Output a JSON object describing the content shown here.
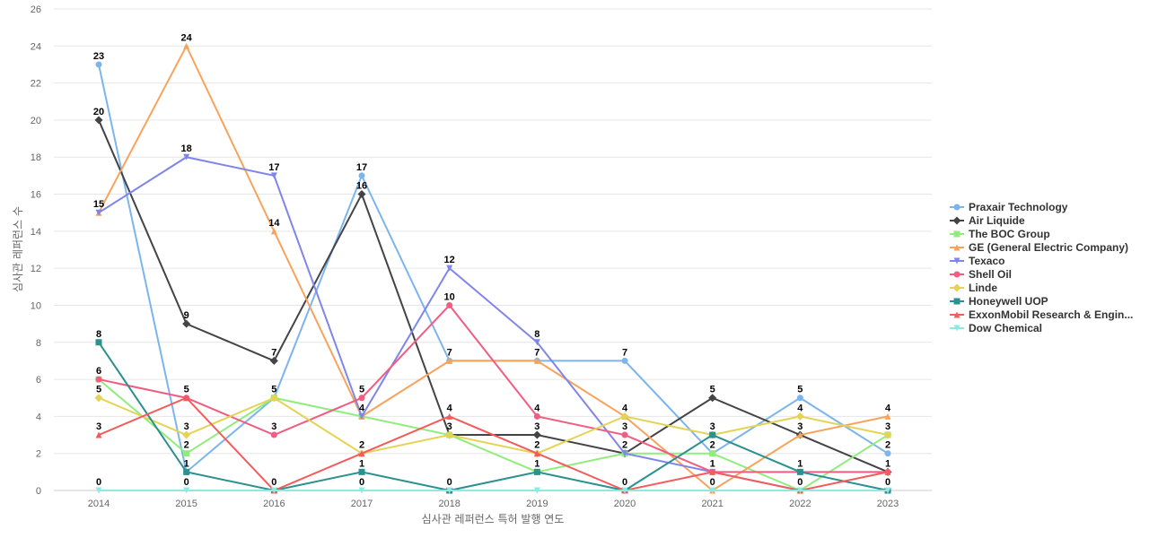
{
  "chart_data": {
    "type": "line",
    "xlabel": "심사관 레퍼런스 특허 발행 연도",
    "ylabel": "심사관 레퍼런스 수",
    "ylim": [
      0,
      26
    ],
    "y_ticks": [
      0,
      2,
      4,
      6,
      8,
      10,
      12,
      14,
      16,
      18,
      20,
      22,
      24,
      26
    ],
    "grid": true,
    "legend_position": "right",
    "categories": [
      "2014",
      "2015",
      "2016",
      "2017",
      "2018",
      "2019",
      "2020",
      "2021",
      "2022",
      "2023"
    ],
    "series": [
      {
        "name": "Praxair Technology",
        "color": "#7cb5ec",
        "marker": "circle",
        "values": [
          23,
          1,
          5,
          17,
          7,
          7,
          7,
          2,
          5,
          2
        ]
      },
      {
        "name": "Air Liquide",
        "color": "#434348",
        "marker": "diamond",
        "values": [
          20,
          9,
          7,
          16,
          3,
          3,
          2,
          5,
          3,
          1
        ]
      },
      {
        "name": "The BOC Group",
        "color": "#90ed7d",
        "marker": "square",
        "values": [
          6,
          2,
          5,
          4,
          3,
          1,
          2,
          2,
          0,
          3
        ]
      },
      {
        "name": "GE (General Electric Company)",
        "color": "#f7a35c",
        "marker": "triangle",
        "values": [
          15,
          24,
          14,
          4,
          7,
          7,
          4,
          0,
          3,
          4
        ]
      },
      {
        "name": "Texaco",
        "color": "#8085e9",
        "marker": "triangle-down",
        "values": [
          15,
          18,
          17,
          4,
          12,
          8,
          2,
          1,
          0,
          0
        ]
      },
      {
        "name": "Shell Oil",
        "color": "#f15c80",
        "marker": "circle",
        "values": [
          6,
          5,
          3,
          5,
          10,
          4,
          3,
          1,
          1,
          1
        ]
      },
      {
        "name": "Linde",
        "color": "#e4d354",
        "marker": "diamond",
        "values": [
          5,
          3,
          5,
          2,
          3,
          2,
          4,
          3,
          4,
          3
        ]
      },
      {
        "name": "Honeywell UOP",
        "color": "#2b908f",
        "marker": "square",
        "values": [
          8,
          1,
          0,
          1,
          0,
          1,
          0,
          3,
          1,
          0
        ]
      },
      {
        "name": "ExxonMobil Research & Engin...",
        "color": "#f45b5b",
        "marker": "triangle",
        "values": [
          3,
          5,
          0,
          2,
          4,
          2,
          0,
          1,
          0,
          1
        ]
      },
      {
        "name": "Dow Chemical",
        "color": "#91e8e1",
        "marker": "triangle-down",
        "values": [
          0,
          0,
          0,
          0,
          0,
          0,
          0,
          0,
          0,
          0
        ]
      }
    ],
    "data_labels": [
      {
        "c": 0,
        "v": 23
      },
      {
        "c": 0,
        "v": 20
      },
      {
        "c": 0,
        "v": 15
      },
      {
        "c": 0,
        "v": 8
      },
      {
        "c": 0,
        "v": 6
      },
      {
        "c": 0,
        "v": 5
      },
      {
        "c": 0,
        "v": 3
      },
      {
        "c": 0,
        "v": 0
      },
      {
        "c": 1,
        "v": 24
      },
      {
        "c": 1,
        "v": 18
      },
      {
        "c": 1,
        "v": 9
      },
      {
        "c": 1,
        "v": 5
      },
      {
        "c": 1,
        "v": 3
      },
      {
        "c": 1,
        "v": 2
      },
      {
        "c": 1,
        "v": 1
      },
      {
        "c": 1,
        "v": 0
      },
      {
        "c": 2,
        "v": 17
      },
      {
        "c": 2,
        "v": 14
      },
      {
        "c": 2,
        "v": 7
      },
      {
        "c": 2,
        "v": 5
      },
      {
        "c": 2,
        "v": 3
      },
      {
        "c": 2,
        "v": 0
      },
      {
        "c": 3,
        "v": 17
      },
      {
        "c": 3,
        "v": 16
      },
      {
        "c": 3,
        "v": 5
      },
      {
        "c": 3,
        "v": 4
      },
      {
        "c": 3,
        "v": 2
      },
      {
        "c": 3,
        "v": 1
      },
      {
        "c": 3,
        "v": 0
      },
      {
        "c": 4,
        "v": 12
      },
      {
        "c": 4,
        "v": 10
      },
      {
        "c": 4,
        "v": 7
      },
      {
        "c": 4,
        "v": 4
      },
      {
        "c": 4,
        "v": 3
      },
      {
        "c": 4,
        "v": 0
      },
      {
        "c": 5,
        "v": 8
      },
      {
        "c": 5,
        "v": 7
      },
      {
        "c": 5,
        "v": 4
      },
      {
        "c": 5,
        "v": 3
      },
      {
        "c": 5,
        "v": 2
      },
      {
        "c": 5,
        "v": 1
      },
      {
        "c": 6,
        "v": 7
      },
      {
        "c": 6,
        "v": 4
      },
      {
        "c": 6,
        "v": 3
      },
      {
        "c": 6,
        "v": 2
      },
      {
        "c": 6,
        "v": 0
      },
      {
        "c": 7,
        "v": 5
      },
      {
        "c": 7,
        "v": 3
      },
      {
        "c": 7,
        "v": 2
      },
      {
        "c": 7,
        "v": 1
      },
      {
        "c": 7,
        "v": 0
      },
      {
        "c": 8,
        "v": 5
      },
      {
        "c": 8,
        "v": 4
      },
      {
        "c": 8,
        "v": 3
      },
      {
        "c": 8,
        "v": 1
      },
      {
        "c": 8,
        "v": 0
      },
      {
        "c": 9,
        "v": 4
      },
      {
        "c": 9,
        "v": 3
      },
      {
        "c": 9,
        "v": 2
      },
      {
        "c": 9,
        "v": 1
      },
      {
        "c": 9,
        "v": 0
      }
    ]
  }
}
